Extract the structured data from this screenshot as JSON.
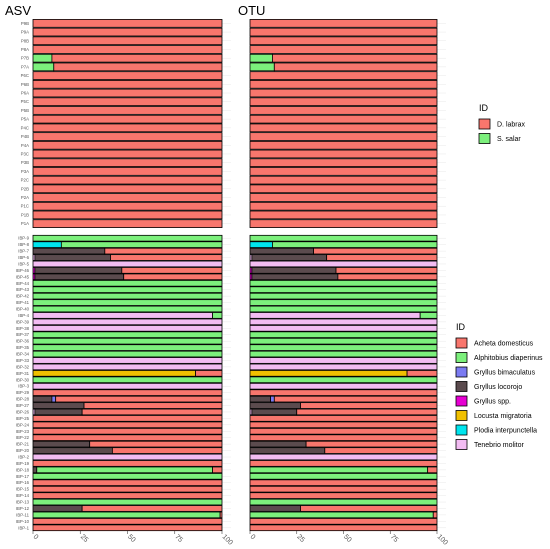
{
  "chart_data": {
    "type": "bar",
    "orientation": "horizontal",
    "stacked": true,
    "facets": [
      "ASV",
      "OTU"
    ],
    "xlim": [
      0,
      100
    ],
    "xticks": [
      0,
      25,
      50,
      75,
      100
    ],
    "legend_position": "right",
    "fish": {
      "legend_title": "ID",
      "species": [
        {
          "name": "D. labrax",
          "color": "#f8766d"
        },
        {
          "name": "S. salar",
          "color": "#7cf07c"
        }
      ],
      "samples": [
        "P9B",
        "P9A",
        "P8B",
        "P8A",
        "P7B",
        "P7A",
        "P6C",
        "P6B",
        "P6A",
        "P5C",
        "P5B",
        "P5A",
        "P4C",
        "P4B",
        "P4A",
        "P3C",
        "P3B",
        "P3A",
        "P2C",
        "P2B",
        "P2A",
        "P1C",
        "P1B",
        "P1A"
      ],
      "values": {
        "ASV": {
          "P7B": {
            "S. salar": 10,
            "D. labrax": 90
          },
          "P7A": {
            "S. salar": 11,
            "D. labrax": 89
          }
        },
        "OTU": {
          "P7B": {
            "S. salar": 12,
            "D. labrax": 88
          },
          "P7A": {
            "S. salar": 13,
            "D. labrax": 87
          }
        }
      },
      "default_species": "D. labrax"
    },
    "insect": {
      "legend_title": "ID",
      "species": [
        {
          "name": "Acheta domesticus",
          "color": "#f8766d"
        },
        {
          "name": "Alphitobius diaperinus",
          "color": "#7cf07c"
        },
        {
          "name": "Gryllus bimaculatus",
          "color": "#7b7bf2"
        },
        {
          "name": "Gryllus locorojo",
          "color": "#5b4b4e"
        },
        {
          "name": "Gryllus spp.",
          "color": "#e600d2"
        },
        {
          "name": "Locusta migratoria",
          "color": "#f0c000"
        },
        {
          "name": "Plodia interpunctella",
          "color": "#00e5ee"
        },
        {
          "name": "Tenebrio molitor",
          "color": "#f2bcf2"
        }
      ],
      "samples": [
        "IBP-9",
        "IBP-8",
        "IBP-7",
        "IBP-6",
        "IBP-5",
        "IBP-46",
        "IBP-45",
        "IBP-44",
        "IBP-43",
        "IBP-42",
        "IBP-41",
        "IBP-40",
        "IBP-4",
        "IBP-39",
        "IBP-38",
        "IBP-37",
        "IBP-36",
        "IBP-35",
        "IBP-34",
        "IBP-33",
        "IBP-32",
        "IBP-31",
        "IBP-30",
        "IBP-3",
        "IBP-29",
        "IBP-28",
        "IBP-27",
        "IBP-26",
        "IBP-25",
        "IBP-24",
        "IBP-23",
        "IBP-22",
        "IBP-21",
        "IBP-20",
        "IBP-2",
        "IBP-19",
        "IBP-18",
        "IBP-17",
        "IBP-16",
        "IBP-15",
        "IBP-14",
        "IBP-13",
        "IBP-12",
        "IBP-11",
        "IBP-10",
        "IBP-1"
      ],
      "ASV": {
        "IBP-9": [
          [
            "Alphitobius diaperinus",
            100
          ]
        ],
        "IBP-8": [
          [
            "Plodia interpunctella",
            15
          ],
          [
            "Alphitobius diaperinus",
            85
          ]
        ],
        "IBP-7": [
          [
            "Gryllus locorojo",
            38
          ],
          [
            "Acheta domesticus",
            62
          ]
        ],
        "IBP-6": [
          [
            "Tenebrio molitor",
            1
          ],
          [
            "Gryllus locorojo",
            40
          ],
          [
            "Acheta domesticus",
            59
          ]
        ],
        "IBP-5": [
          [
            "Tenebrio molitor",
            100
          ]
        ],
        "IBP-46": [
          [
            "Gryllus spp.",
            1
          ],
          [
            "Gryllus locorojo",
            46
          ],
          [
            "Acheta domesticus",
            53
          ]
        ],
        "IBP-45": [
          [
            "Gryllus spp.",
            1
          ],
          [
            "Gryllus locorojo",
            47
          ],
          [
            "Acheta domesticus",
            52
          ]
        ],
        "IBP-44": [
          [
            "Alphitobius diaperinus",
            100
          ]
        ],
        "IBP-43": [
          [
            "Alphitobius diaperinus",
            100
          ]
        ],
        "IBP-42": [
          [
            "Alphitobius diaperinus",
            100
          ]
        ],
        "IBP-41": [
          [
            "Alphitobius diaperinus",
            100
          ]
        ],
        "IBP-40": [
          [
            "Alphitobius diaperinus",
            100
          ]
        ],
        "IBP-4": [
          [
            "Tenebrio molitor",
            95
          ],
          [
            "Alphitobius diaperinus",
            5
          ]
        ],
        "IBP-39": [
          [
            "Tenebrio molitor",
            100
          ]
        ],
        "IBP-38": [
          [
            "Tenebrio molitor",
            100
          ]
        ],
        "IBP-37": [
          [
            "Alphitobius diaperinus",
            100
          ]
        ],
        "IBP-36": [
          [
            "Alphitobius diaperinus",
            100
          ]
        ],
        "IBP-35": [
          [
            "Alphitobius diaperinus",
            100
          ]
        ],
        "IBP-34": [
          [
            "Alphitobius diaperinus",
            100
          ]
        ],
        "IBP-33": [
          [
            "Tenebrio molitor",
            100
          ]
        ],
        "IBP-32": [
          [
            "Tenebrio molitor",
            100
          ]
        ],
        "IBP-31": [
          [
            "Locusta migratoria",
            86
          ],
          [
            "Acheta domesticus",
            14
          ]
        ],
        "IBP-30": [
          [
            "Alphitobius diaperinus",
            100
          ]
        ],
        "IBP-3": [
          [
            "Tenebrio molitor",
            100
          ]
        ],
        "IBP-29": [
          [
            "Acheta domesticus",
            100
          ]
        ],
        "IBP-28": [
          [
            "Gryllus locorojo",
            10
          ],
          [
            "Gryllus bimaculatus",
            2
          ],
          [
            "Acheta domesticus",
            88
          ]
        ],
        "IBP-27": [
          [
            "Gryllus locorojo",
            27
          ],
          [
            "Acheta domesticus",
            73
          ]
        ],
        "IBP-26": [
          [
            "Tenebrio molitor",
            1
          ],
          [
            "Gryllus locorojo",
            25
          ],
          [
            "Acheta domesticus",
            74
          ]
        ],
        "IBP-25": [
          [
            "Acheta domesticus",
            100
          ]
        ],
        "IBP-24": [
          [
            "Acheta domesticus",
            100
          ]
        ],
        "IBP-23": [
          [
            "Acheta domesticus",
            100
          ]
        ],
        "IBP-22": [
          [
            "Acheta domesticus",
            100
          ]
        ],
        "IBP-21": [
          [
            "Gryllus locorojo",
            30
          ],
          [
            "Acheta domesticus",
            70
          ]
        ],
        "IBP-20": [
          [
            "Gryllus locorojo",
            42
          ],
          [
            "Acheta domesticus",
            58
          ]
        ],
        "IBP-2": [
          [
            "Tenebrio molitor",
            100
          ]
        ],
        "IBP-19": [
          [
            "Acheta domesticus",
            100
          ]
        ],
        "IBP-18": [
          [
            "Gryllus locorojo",
            2
          ],
          [
            "Alphitobius diaperinus",
            93
          ],
          [
            "Acheta domesticus",
            5
          ]
        ],
        "IBP-17": [
          [
            "Alphitobius diaperinus",
            100
          ]
        ],
        "IBP-16": [
          [
            "Acheta domesticus",
            100
          ]
        ],
        "IBP-15": [
          [
            "Acheta domesticus",
            100
          ]
        ],
        "IBP-14": [
          [
            "Acheta domesticus",
            100
          ]
        ],
        "IBP-13": [
          [
            "Alphitobius diaperinus",
            100
          ]
        ],
        "IBP-12": [
          [
            "Gryllus locorojo",
            26
          ],
          [
            "Acheta domesticus",
            74
          ]
        ],
        "IBP-11": [
          [
            "Alphitobius diaperinus",
            99
          ],
          [
            "Acheta domesticus",
            1
          ]
        ],
        "IBP-10": [
          [
            "Acheta domesticus",
            100
          ]
        ],
        "IBP-1": [
          [
            "Acheta domesticus",
            100
          ]
        ]
      },
      "OTU": {
        "IBP-9": [
          [
            "Alphitobius diaperinus",
            100
          ]
        ],
        "IBP-8": [
          [
            "Plodia interpunctella",
            12
          ],
          [
            "Alphitobius diaperinus",
            88
          ]
        ],
        "IBP-7": [
          [
            "Gryllus locorojo",
            34
          ],
          [
            "Acheta domesticus",
            66
          ]
        ],
        "IBP-6": [
          [
            "Tenebrio molitor",
            1
          ],
          [
            "Gryllus locorojo",
            40
          ],
          [
            "Acheta domesticus",
            59
          ]
        ],
        "IBP-5": [
          [
            "Tenebrio molitor",
            100
          ]
        ],
        "IBP-46": [
          [
            "Gryllus spp.",
            1
          ],
          [
            "Gryllus locorojo",
            45
          ],
          [
            "Acheta domesticus",
            54
          ]
        ],
        "IBP-45": [
          [
            "Gryllus spp.",
            1
          ],
          [
            "Gryllus locorojo",
            46
          ],
          [
            "Acheta domesticus",
            53
          ]
        ],
        "IBP-44": [
          [
            "Alphitobius diaperinus",
            100
          ]
        ],
        "IBP-43": [
          [
            "Alphitobius diaperinus",
            100
          ]
        ],
        "IBP-42": [
          [
            "Alphitobius diaperinus",
            100
          ]
        ],
        "IBP-41": [
          [
            "Alphitobius diaperinus",
            100
          ]
        ],
        "IBP-40": [
          [
            "Alphitobius diaperinus",
            100
          ]
        ],
        "IBP-4": [
          [
            "Tenebrio molitor",
            91
          ],
          [
            "Alphitobius diaperinus",
            9
          ]
        ],
        "IBP-39": [
          [
            "Tenebrio molitor",
            100
          ]
        ],
        "IBP-38": [
          [
            "Tenebrio molitor",
            100
          ]
        ],
        "IBP-37": [
          [
            "Alphitobius diaperinus",
            100
          ]
        ],
        "IBP-36": [
          [
            "Alphitobius diaperinus",
            100
          ]
        ],
        "IBP-35": [
          [
            "Alphitobius diaperinus",
            100
          ]
        ],
        "IBP-34": [
          [
            "Alphitobius diaperinus",
            100
          ]
        ],
        "IBP-33": [
          [
            "Tenebrio molitor",
            100
          ]
        ],
        "IBP-32": [
          [
            "Tenebrio molitor",
            100
          ]
        ],
        "IBP-31": [
          [
            "Locusta migratoria",
            84
          ],
          [
            "Acheta domesticus",
            16
          ]
        ],
        "IBP-30": [
          [
            "Alphitobius diaperinus",
            100
          ]
        ],
        "IBP-3": [
          [
            "Tenebrio molitor",
            100
          ]
        ],
        "IBP-29": [
          [
            "Acheta domesticus",
            100
          ]
        ],
        "IBP-28": [
          [
            "Gryllus locorojo",
            11
          ],
          [
            "Gryllus bimaculatus",
            2
          ],
          [
            "Acheta domesticus",
            87
          ]
        ],
        "IBP-27": [
          [
            "Gryllus locorojo",
            27
          ],
          [
            "Acheta domesticus",
            73
          ]
        ],
        "IBP-26": [
          [
            "Tenebrio molitor",
            1
          ],
          [
            "Gryllus locorojo",
            24
          ],
          [
            "Acheta domesticus",
            75
          ]
        ],
        "IBP-25": [
          [
            "Acheta domesticus",
            100
          ]
        ],
        "IBP-24": [
          [
            "Acheta domesticus",
            100
          ]
        ],
        "IBP-23": [
          [
            "Acheta domesticus",
            100
          ]
        ],
        "IBP-22": [
          [
            "Acheta domesticus",
            100
          ]
        ],
        "IBP-21": [
          [
            "Gryllus locorojo",
            30
          ],
          [
            "Acheta domesticus",
            70
          ]
        ],
        "IBP-20": [
          [
            "Gryllus locorojo",
            40
          ],
          [
            "Acheta domesticus",
            60
          ]
        ],
        "IBP-2": [
          [
            "Tenebrio molitor",
            100
          ]
        ],
        "IBP-19": [
          [
            "Acheta domesticus",
            100
          ]
        ],
        "IBP-18": [
          [
            "Alphitobius diaperinus",
            95
          ],
          [
            "Acheta domesticus",
            5
          ]
        ],
        "IBP-17": [
          [
            "Alphitobius diaperinus",
            100
          ]
        ],
        "IBP-16": [
          [
            "Acheta domesticus",
            100
          ]
        ],
        "IBP-15": [
          [
            "Acheta domesticus",
            100
          ]
        ],
        "IBP-14": [
          [
            "Acheta domesticus",
            100
          ]
        ],
        "IBP-13": [
          [
            "Alphitobius diaperinus",
            100
          ]
        ],
        "IBP-12": [
          [
            "Gryllus locorojo",
            27
          ],
          [
            "Acheta domesticus",
            73
          ]
        ],
        "IBP-11": [
          [
            "Alphitobius diaperinus",
            98
          ],
          [
            "Acheta domesticus",
            2
          ]
        ],
        "IBP-10": [
          [
            "Acheta domesticus",
            100
          ]
        ],
        "IBP-1": [
          [
            "Acheta domesticus",
            100
          ]
        ]
      }
    }
  }
}
